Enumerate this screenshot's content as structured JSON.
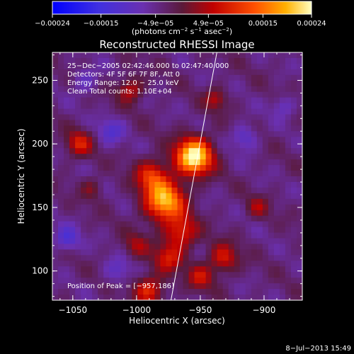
{
  "chart_data": {
    "type": "heatmap",
    "title": "Reconstructed RHESSI Image",
    "xlabel": "Heliocentric X (arcsec)",
    "ylabel": "Heliocentric Y (arcsec)",
    "xlim": [
      -1066,
      -870
    ],
    "ylim": [
      77,
      272
    ],
    "xticks": [
      -1050,
      -1000,
      -950,
      -900
    ],
    "xtick_labels": [
      "−1050",
      "−1000",
      "−950",
      "−900"
    ],
    "yticks": [
      100,
      150,
      200,
      250
    ],
    "ytick_labels": [
      "100",
      "150",
      "200",
      "250"
    ],
    "colorbar": {
      "min": -0.00024,
      "max": 0.00024,
      "ticks": [
        -0.00024,
        -0.00015,
        -4.9e-05,
        4.9e-05,
        0.00015,
        0.00024
      ],
      "tick_labels": [
        "−0.00024",
        "−0.00015",
        "−4.9e−05",
        "4.9e−05",
        "0.00015",
        "0.00024"
      ],
      "unit_prefix": "(photons cm",
      "unit_sup1": "−2",
      "unit_mid": " s",
      "unit_sup2": "−1",
      "unit_mid2": " asec",
      "unit_sup3": "−2",
      "unit_suffix": ")"
    },
    "annotations": [
      "25−Dec−2005 02:42:46.000 to 02:47:40.000",
      "Detectors: 4F 5F 6F 7F 8F, Att 0",
      "Energy Range: 12.0 − 25.0 keV",
      "Clean     Total counts: 1.10E+04"
    ],
    "peak_label": "Position of Peak = [−957,186]",
    "limb_line": [
      [
        -973,
        77
      ],
      [
        -937,
        272
      ]
    ],
    "sources": [
      {
        "x": -955,
        "y": 190,
        "amp": 1.0,
        "sigma": 10
      },
      {
        "x": -978,
        "y": 155,
        "amp": 0.8,
        "sigma": 11
      },
      {
        "x": -988,
        "y": 175,
        "amp": 0.45,
        "sigma": 9
      },
      {
        "x": -965,
        "y": 130,
        "amp": 0.45,
        "sigma": 9
      },
      {
        "x": -975,
        "y": 110,
        "amp": 0.38,
        "sigma": 8
      },
      {
        "x": -990,
        "y": 85,
        "amp": 0.45,
        "sigma": 8
      },
      {
        "x": -1045,
        "y": 200,
        "amp": 0.4,
        "sigma": 7
      },
      {
        "x": -1005,
        "y": 243,
        "amp": 0.35,
        "sigma": 7
      },
      {
        "x": -932,
        "y": 110,
        "amp": 0.4,
        "sigma": 8
      },
      {
        "x": -950,
        "y": 95,
        "amp": 0.35,
        "sigma": 7
      },
      {
        "x": -938,
        "y": 235,
        "amp": 0.3,
        "sigma": 6
      },
      {
        "x": -905,
        "y": 150,
        "amp": 0.25,
        "sigma": 6
      },
      {
        "x": -1035,
        "y": 165,
        "amp": 0.2,
        "sigma": 6
      },
      {
        "x": -1000,
        "y": 120,
        "amp": 0.25,
        "sigma": 7
      }
    ],
    "negatives": [
      {
        "x": -1055,
        "y": 125,
        "amp": 0.3,
        "sigma": 7
      },
      {
        "x": -1020,
        "y": 210,
        "amp": 0.25,
        "sigma": 7
      },
      {
        "x": -915,
        "y": 205,
        "amp": 0.25,
        "sigma": 7
      },
      {
        "x": -1040,
        "y": 250,
        "amp": 0.2,
        "sigma": 7
      },
      {
        "x": -885,
        "y": 230,
        "amp": 0.2,
        "sigma": 6
      },
      {
        "x": -1015,
        "y": 100,
        "amp": 0.2,
        "sigma": 7
      }
    ]
  },
  "footer": {
    "date": "8−Jul−2013 15:49"
  }
}
